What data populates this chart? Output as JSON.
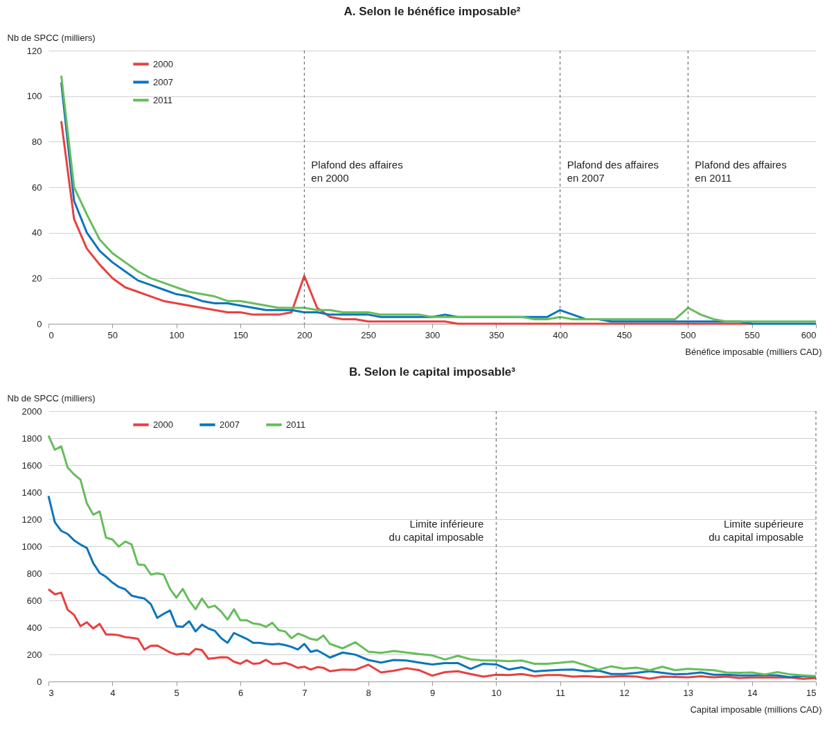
{
  "chart_data": [
    {
      "type": "line",
      "title": "A. Selon le bénéfice imposable²",
      "xlabel": "Bénéfice imposable (milliers CAD)",
      "ylabel": "Nb de SPCC (milliers)",
      "x": [
        10,
        20,
        30,
        40,
        50,
        60,
        70,
        80,
        90,
        100,
        110,
        120,
        130,
        140,
        150,
        160,
        170,
        180,
        190,
        200,
        210,
        220,
        230,
        240,
        250,
        260,
        270,
        280,
        290,
        300,
        310,
        320,
        330,
        340,
        350,
        360,
        370,
        380,
        390,
        400,
        410,
        420,
        430,
        440,
        450,
        460,
        470,
        480,
        490,
        500,
        510,
        520,
        530,
        540,
        550,
        560,
        570,
        580,
        590,
        600
      ],
      "series": [
        {
          "name": "2000",
          "color": "#e8403f",
          "values": [
            89,
            46,
            33,
            26,
            20,
            16,
            14,
            12,
            10,
            9,
            8,
            7,
            6,
            5,
            5,
            4,
            4,
            4,
            5,
            21,
            7,
            3,
            2,
            2,
            1,
            1,
            1,
            1,
            1,
            1,
            1,
            0,
            0,
            0,
            0,
            0,
            0,
            0,
            0,
            0,
            0,
            0,
            0,
            0,
            0,
            0,
            0,
            0,
            0,
            0,
            0,
            0,
            0,
            0,
            0,
            null,
            null,
            null,
            null,
            null
          ]
        },
        {
          "name": "2007",
          "color": "#0a75bc",
          "values": [
            106,
            54,
            40,
            32,
            27,
            23,
            19,
            17,
            15,
            13,
            12,
            10,
            9,
            9,
            8,
            7,
            6,
            6,
            6,
            5,
            5,
            4,
            4,
            4,
            4,
            3,
            3,
            3,
            3,
            3,
            4,
            3,
            3,
            3,
            3,
            3,
            3,
            3,
            3,
            6,
            4,
            2,
            2,
            1,
            1,
            1,
            1,
            1,
            1,
            1,
            1,
            1,
            1,
            1,
            0,
            0,
            0,
            0,
            0,
            0
          ]
        },
        {
          "name": "2011",
          "color": "#66bd5b",
          "values": [
            109,
            60,
            48,
            37,
            31,
            27,
            23,
            20,
            18,
            16,
            14,
            13,
            12,
            10,
            10,
            9,
            8,
            7,
            7,
            7,
            6,
            6,
            5,
            5,
            5,
            4,
            4,
            4,
            4,
            3,
            3,
            3,
            3,
            3,
            3,
            3,
            3,
            2,
            2,
            3,
            2,
            2,
            2,
            2,
            2,
            2,
            2,
            2,
            2,
            7,
            4,
            2,
            1,
            1,
            1,
            1,
            1,
            1,
            1,
            1
          ]
        }
      ],
      "xlim": [
        0,
        600
      ],
      "xticks": [
        0,
        50,
        100,
        150,
        200,
        250,
        300,
        350,
        400,
        450,
        500,
        550,
        600
      ],
      "ylim": [
        0,
        120
      ],
      "yticks": [
        0,
        20,
        40,
        60,
        80,
        100,
        120
      ],
      "grid": "y",
      "legend": "top left",
      "ref_lines": [
        {
          "axis": "x",
          "value": 200,
          "line_style": "dashed",
          "color": "#555555"
        },
        {
          "axis": "x",
          "value": 400,
          "line_style": "dashed",
          "color": "#555555"
        },
        {
          "axis": "x",
          "value": 500,
          "line_style": "dashed",
          "color": "#555555"
        }
      ],
      "annotations": [
        {
          "text": "Plafond des affaires\nen 2000",
          "x": 200,
          "y": 60
        },
        {
          "text": "Plafond des affaires\nen 2007",
          "x": 400,
          "y": 60
        },
        {
          "text": "Plafond des affaires\nen 2011",
          "x": 500,
          "y": 60
        }
      ]
    },
    {
      "type": "line",
      "title": "B. Selon le capital imposable³",
      "xlabel": "Capital imposable (millions CAD)",
      "ylabel": "Nb de SPCC (milliers)",
      "x": [
        3,
        3.1,
        3.2,
        3.3,
        3.4,
        3.5,
        3.6,
        3.7,
        3.8,
        3.9,
        4,
        4.1,
        4.2,
        4.3,
        4.4,
        4.5,
        4.6,
        4.7,
        4.8,
        4.9,
        5,
        5.1,
        5.2,
        5.3,
        5.4,
        5.5,
        5.6,
        5.7,
        5.8,
        5.9,
        6,
        6.1,
        6.2,
        6.3,
        6.4,
        6.5,
        6.6,
        6.7,
        6.8,
        6.9,
        7,
        7.1,
        7.2,
        7.3,
        7.4,
        7.6,
        7.8,
        8,
        8.2,
        8.4,
        8.6,
        8.8,
        9,
        9.2,
        9.4,
        9.6,
        9.8,
        10,
        10.2,
        10.4,
        10.6,
        10.8,
        11,
        11.2,
        11.4,
        11.6,
        11.8,
        12,
        12.2,
        12.4,
        12.6,
        12.8,
        13,
        13.2,
        13.4,
        13.6,
        13.8,
        14,
        14.2,
        14.4,
        14.6,
        14.8,
        15
      ],
      "series": [
        {
          "name": "2000",
          "color": "#e8403f",
          "values": [
            682,
            645,
            657,
            530,
            493,
            409,
            438,
            392,
            426,
            348,
            348,
            342,
            328,
            323,
            315,
            236,
            264,
            266,
            241,
            215,
            199,
            207,
            199,
            241,
            232,
            168,
            173,
            180,
            178,
            146,
            131,
            157,
            131,
            135,
            160,
            131,
            130,
            138,
            123,
            101,
            109,
            88,
            106,
            101,
            76,
            88,
            86,
            124,
            67,
            79,
            98,
            83,
            43,
            69,
            76,
            55,
            36,
            50,
            48,
            55,
            40,
            48,
            48,
            36,
            40,
            33,
            36,
            40,
            36,
            21,
            36,
            33,
            31,
            38,
            31,
            36,
            26,
            29,
            31,
            29,
            29,
            19,
            26
          ]
        },
        {
          "name": "2007",
          "color": "#0a75bc",
          "values": [
            1372,
            1178,
            1114,
            1091,
            1044,
            1013,
            988,
            875,
            803,
            774,
            732,
            699,
            682,
            635,
            623,
            614,
            572,
            471,
            500,
            525,
            409,
            404,
            446,
            370,
            421,
            392,
            375,
            320,
            286,
            359,
            337,
            315,
            286,
            286,
            278,
            274,
            278,
            269,
            256,
            236,
            278,
            219,
            231,
            205,
            177,
            214,
            198,
            159,
            140,
            159,
            155,
            140,
            126,
            136,
            136,
            93,
            131,
            126,
            88,
            105,
            74,
            81,
            86,
            88,
            76,
            81,
            55,
            55,
            64,
            76,
            64,
            52,
            57,
            67,
            50,
            50,
            45,
            45,
            48,
            45,
            31,
            40,
            36
          ]
        },
        {
          "name": "2011",
          "color": "#66bd5b",
          "values": [
            1818,
            1714,
            1739,
            1582,
            1532,
            1493,
            1318,
            1234,
            1258,
            1064,
            1050,
            998,
            1035,
            1013,
            865,
            862,
            791,
            800,
            791,
            685,
            620,
            685,
            598,
            534,
            614,
            547,
            561,
            517,
            458,
            534,
            453,
            453,
            429,
            423,
            404,
            434,
            379,
            370,
            320,
            354,
            337,
            315,
            306,
            340,
            278,
            245,
            290,
            221,
            212,
            226,
            214,
            202,
            193,
            162,
            190,
            164,
            155,
            155,
            150,
            155,
            131,
            131,
            138,
            148,
            119,
            88,
            112,
            95,
            102,
            83,
            109,
            83,
            93,
            88,
            83,
            67,
            64,
            67,
            52,
            69,
            52,
            45,
            40
          ]
        }
      ],
      "xlim": [
        3,
        15
      ],
      "xticks": [
        3,
        4,
        5,
        6,
        7,
        8,
        9,
        10,
        11,
        12,
        13,
        14,
        15
      ],
      "ylim": [
        0,
        2000
      ],
      "yticks": [
        0,
        200,
        400,
        600,
        800,
        1000,
        1200,
        1400,
        1600,
        1800,
        2000
      ],
      "grid": "y",
      "legend": "top left",
      "ref_lines": [
        {
          "axis": "x",
          "value": 10,
          "line_style": "dashed",
          "color": "#555555"
        },
        {
          "axis": "x",
          "value": 15,
          "line_style": "dashed",
          "color": "#555555"
        }
      ],
      "annotations": [
        {
          "text": "Limite inférieure\ndu capital imposable",
          "x": 10,
          "y": 1000
        },
        {
          "text": "Limite supérieure\ndu capital imposable",
          "x": 15,
          "y": 1000
        }
      ]
    }
  ]
}
